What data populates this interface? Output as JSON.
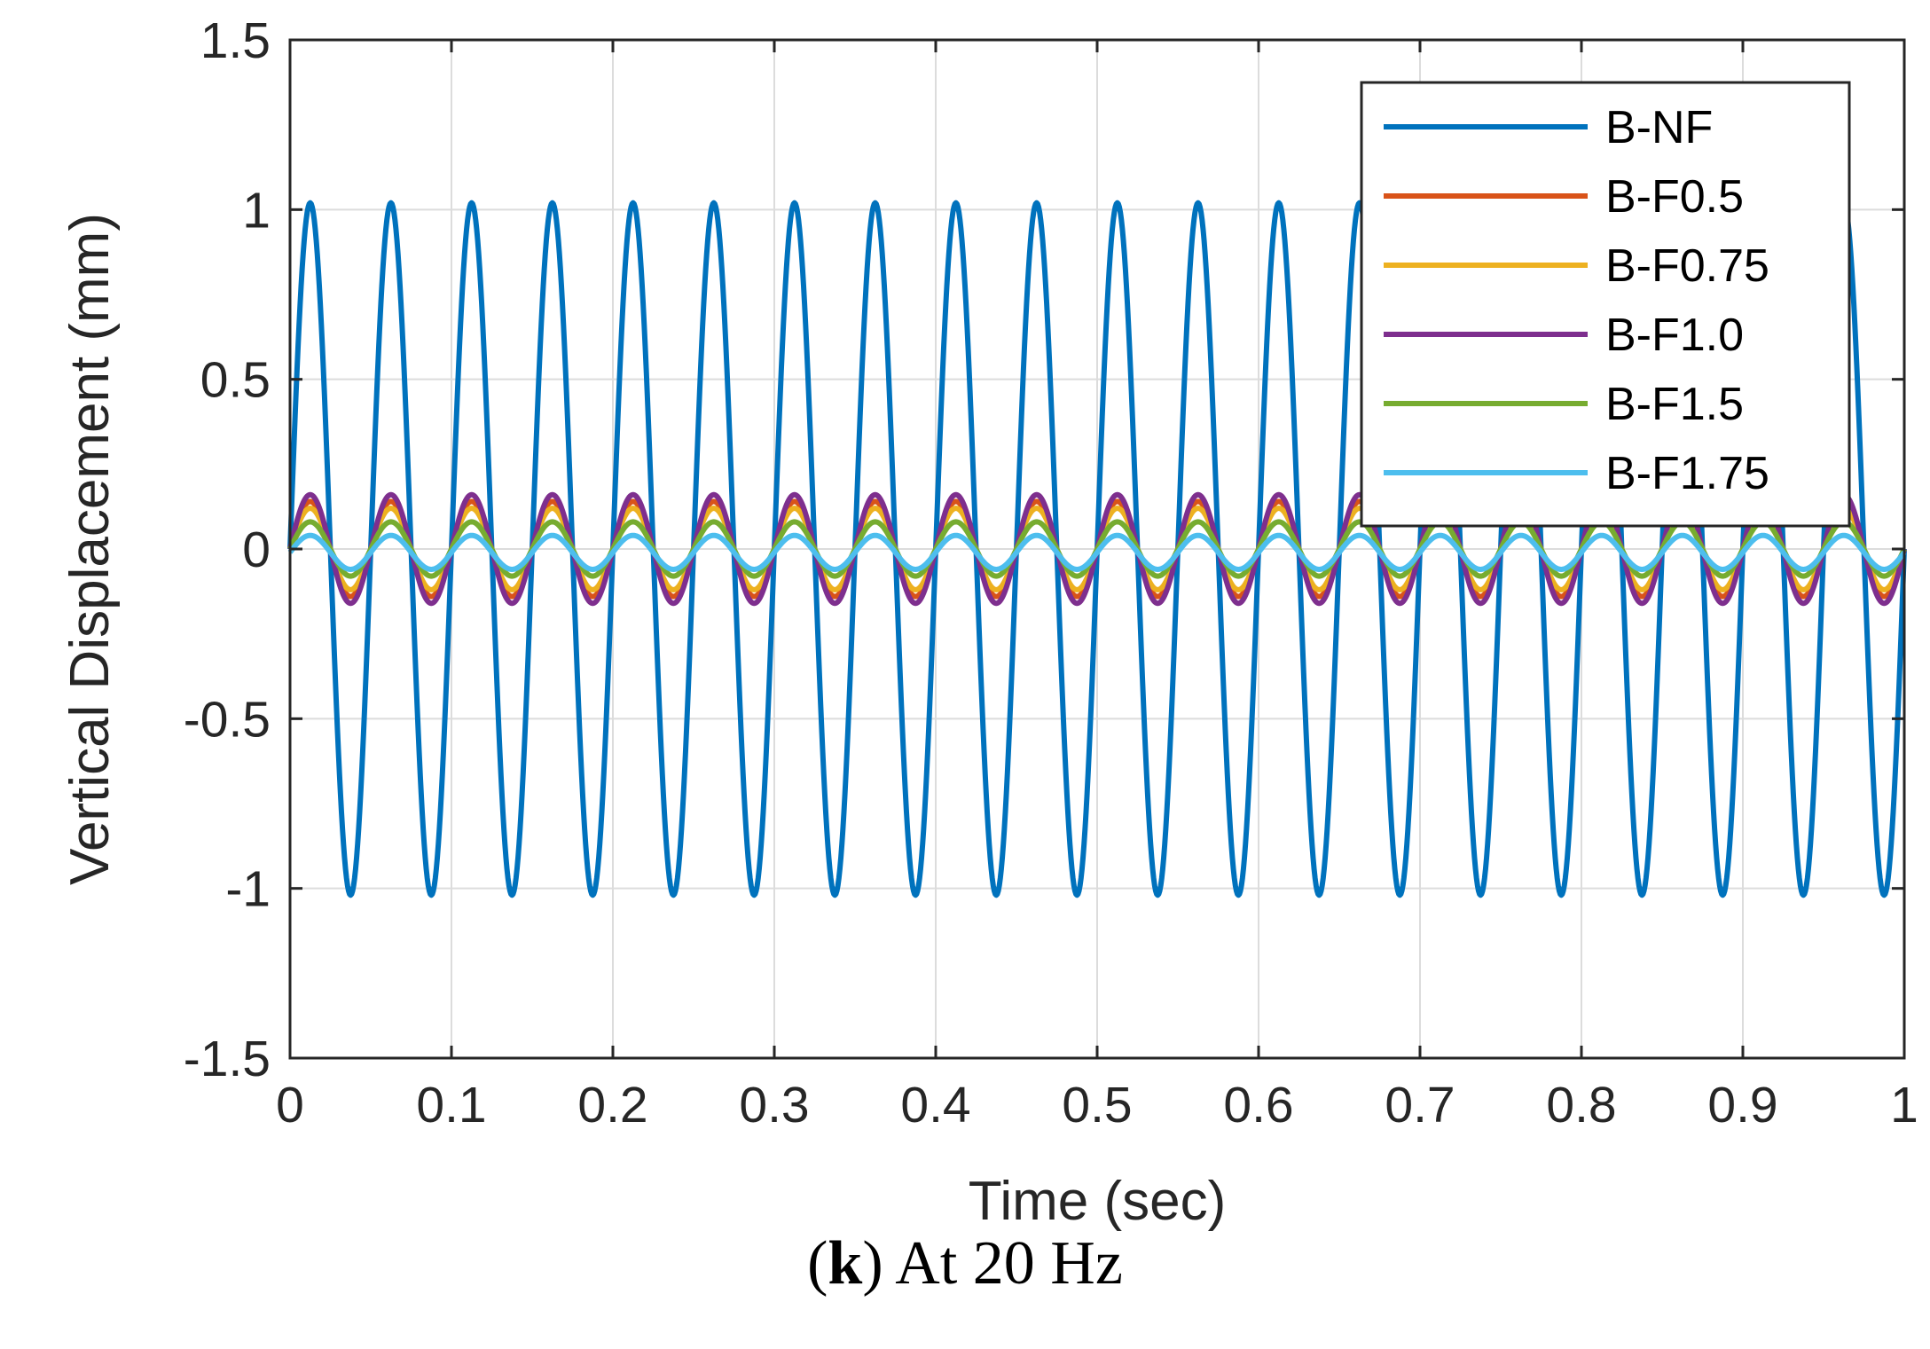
{
  "caption": {
    "prefix": "(",
    "letter": "k",
    "suffix": ") At 20 Hz"
  },
  "chart_data": {
    "type": "line",
    "title": "",
    "xlabel": "Time (sec)",
    "ylabel": "Vertical Displacement (mm)",
    "xlim": [
      0,
      1
    ],
    "ylim": [
      -1.5,
      1.5
    ],
    "xticks": [
      0,
      0.1,
      0.2,
      0.3,
      0.4,
      0.5,
      0.6,
      0.7,
      0.8,
      0.9,
      1
    ],
    "xtick_labels": [
      "0",
      "0.1",
      "0.2",
      "0.3",
      "0.4",
      "0.5",
      "0.6",
      "0.7",
      "0.8",
      "0.9",
      "1"
    ],
    "yticks": [
      -1.5,
      -1,
      -0.5,
      0,
      0.5,
      1,
      1.5
    ],
    "ytick_labels": [
      "-1.5",
      "-1",
      "-0.5",
      "0",
      "0.5",
      "1",
      "1.5"
    ],
    "grid": true,
    "legend_position": "top-right",
    "frequency_hz": 20,
    "series": [
      {
        "name": "B-NF",
        "color": "#0072BD",
        "amplitude": 1.02,
        "offset": 0.0
      },
      {
        "name": "B-F0.5",
        "color": "#D95319",
        "amplitude": 0.14,
        "offset": 0.0
      },
      {
        "name": "B-F0.75",
        "color": "#EDB120",
        "amplitude": 0.12,
        "offset": 0.0
      },
      {
        "name": "B-F1.0",
        "color": "#7E2F8E",
        "amplitude": 0.16,
        "offset": 0.0
      },
      {
        "name": "B-F1.5",
        "color": "#77AC30",
        "amplitude": 0.08,
        "offset": 0.0
      },
      {
        "name": "B-F1.75",
        "color": "#4DBEEE",
        "amplitude": 0.05,
        "offset": -0.01
      }
    ]
  }
}
